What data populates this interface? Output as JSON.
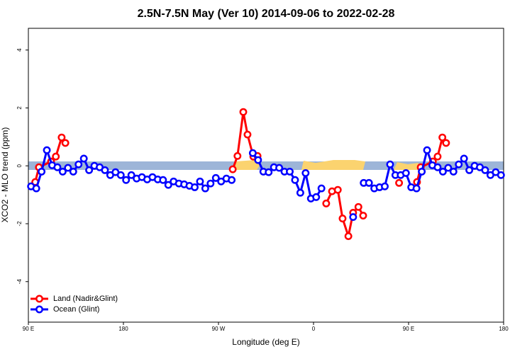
{
  "chart_data": {
    "type": "line",
    "title": "2.5N-7.5N May (Ver 10)   2014-09-06 to 2022-02-28",
    "x_label": "Longitude (deg E)",
    "y_label": "XCO2 - MLO trend (ppm)",
    "xlim": [
      90,
      540
    ],
    "xticks": [
      {
        "value": 90,
        "label": "90 E"
      },
      180,
      {
        "value": 270,
        "label": "90 W"
      },
      {
        "value": 360,
        "label": "0"
      },
      {
        "value": 450,
        "label": "90 E"
      },
      180
    ],
    "ylim": [
      -5.4,
      4.75
    ],
    "yticks": [
      -4,
      -2,
      0,
      2,
      4
    ],
    "legend": "bottom-left",
    "series": [
      {
        "name": "Land (Nadir&Glint)",
        "color": "#ff0000",
        "x": [
          96.5,
          100,
          111.5,
          116,
          121.5,
          125,
          null,
          283.5,
          288,
          293.5,
          297.5,
          303,
          307,
          null,
          372,
          377.5,
          383,
          387.5,
          393,
          397.5,
          402.5,
          407,
          null,
          441,
          null,
          458,
          461.5,
          473,
          477.5,
          482,
          485.5
        ],
        "values": [
          -0.56,
          -0.05,
          0.15,
          0.32,
          0.98,
          0.79,
          null,
          -0.12,
          0.34,
          1.86,
          1.08,
          0.32,
          0.34,
          null,
          -1.3,
          -0.88,
          -0.83,
          -1.82,
          -2.43,
          -1.62,
          -1.42,
          -1.72,
          null,
          -0.59,
          null,
          -0.56,
          -0.05,
          0.15,
          0.32,
          0.98,
          0.79
        ]
      },
      {
        "name": "Ocean (Glint)",
        "color": "#0000ff",
        "x": [
          92.5,
          97.5,
          102.5,
          107.5,
          112.5,
          117.5,
          122.5,
          127.5,
          132.5,
          137.5,
          142.5,
          147.5,
          152.5,
          157.5,
          162.5,
          167.5,
          172.5,
          177.5,
          182.5,
          187.5,
          192.5,
          197.5,
          202.5,
          207.5,
          212.5,
          217.5,
          222.5,
          227.5,
          232.5,
          237.5,
          242.5,
          247.5,
          252.5,
          257.5,
          262.5,
          267.5,
          272.5,
          277.5,
          282.5,
          null,
          302.5,
          307.5,
          312.5,
          317.5,
          322.5,
          327.5,
          332.5,
          337.5,
          342.5,
          347.5,
          352.5,
          357.5,
          362.5,
          367.5,
          null,
          397.5,
          null,
          407.5,
          412.5,
          417.5,
          422.5,
          427.5,
          432.5,
          437.5,
          442.5,
          447.5,
          452.5,
          457.5,
          462.5,
          467.5,
          472.5,
          477.5,
          482.5,
          487.5,
          492.5,
          497.5,
          502.5,
          507.5,
          512.5,
          517.5,
          522.5,
          527.5,
          532.5,
          537.5
        ],
        "values": [
          -0.71,
          -0.78,
          -0.2,
          0.54,
          0.02,
          -0.05,
          -0.2,
          -0.07,
          -0.2,
          0.05,
          0.25,
          -0.15,
          0,
          -0.05,
          -0.15,
          -0.32,
          -0.22,
          -0.32,
          -0.49,
          -0.32,
          -0.44,
          -0.39,
          -0.47,
          -0.39,
          -0.47,
          -0.49,
          -0.66,
          -0.54,
          -0.61,
          -0.64,
          -0.69,
          -0.74,
          -0.54,
          -0.78,
          -0.61,
          -0.42,
          -0.54,
          -0.44,
          -0.49,
          null,
          0.44,
          0.2,
          -0.2,
          -0.22,
          -0.05,
          -0.07,
          -0.2,
          -0.2,
          -0.49,
          -0.93,
          -0.25,
          -1.13,
          -1.08,
          -0.78,
          null,
          -1.77,
          null,
          -0.59,
          -0.59,
          -0.78,
          -0.74,
          -0.71,
          0.05,
          -0.32,
          -0.32,
          -0.25,
          -0.74,
          -0.78,
          -0.2,
          0.54,
          0.02,
          -0.05,
          -0.2,
          -0.07,
          -0.2,
          0.05,
          0.25,
          -0.15,
          0,
          -0.05,
          -0.15,
          -0.32,
          -0.22,
          -0.32
        ]
      }
    ]
  }
}
